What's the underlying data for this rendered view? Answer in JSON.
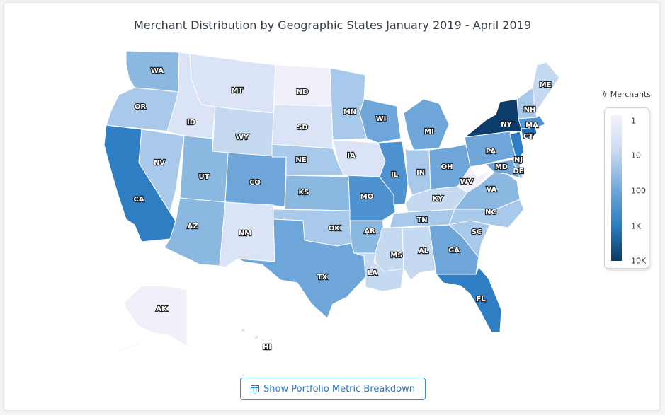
{
  "title": "Merchant Distribution by Geographic States January 2019 - April 2019",
  "legend": {
    "title": "# Merchants",
    "ticks": [
      "1",
      "10",
      "100",
      "1K",
      "10K"
    ]
  },
  "button": {
    "label": "Show Portfolio Metric Breakdown",
    "icon": "table-icon"
  },
  "colors": {
    "c1": "#f0effa",
    "c2": "#dbe4f6",
    "c3": "#c5d9f1",
    "c4": "#a9c9ea",
    "c5": "#8bb8e1",
    "c6": "#6ea6d9",
    "c7": "#4e92cf",
    "c8": "#2f7ec4",
    "c9": "#1c69b3",
    "c10": "#0b3c6c"
  },
  "states": [
    {
      "code": "WA",
      "shade": "c5"
    },
    {
      "code": "OR",
      "shade": "c4"
    },
    {
      "code": "CA",
      "shade": "c8"
    },
    {
      "code": "NV",
      "shade": "c4"
    },
    {
      "code": "ID",
      "shade": "c2"
    },
    {
      "code": "MT",
      "shade": "c2"
    },
    {
      "code": "WY",
      "shade": "c3"
    },
    {
      "code": "UT",
      "shade": "c5"
    },
    {
      "code": "AZ",
      "shade": "c5"
    },
    {
      "code": "CO",
      "shade": "c6"
    },
    {
      "code": "NM",
      "shade": "c2"
    },
    {
      "code": "ND",
      "shade": "c1"
    },
    {
      "code": "SD",
      "shade": "c2"
    },
    {
      "code": "NE",
      "shade": "c4"
    },
    {
      "code": "KS",
      "shade": "c5"
    },
    {
      "code": "OK",
      "shade": "c4"
    },
    {
      "code": "TX",
      "shade": "c6"
    },
    {
      "code": "MN",
      "shade": "c4"
    },
    {
      "code": "IA",
      "shade": "c2"
    },
    {
      "code": "MO",
      "shade": "c7"
    },
    {
      "code": "AR",
      "shade": "c5"
    },
    {
      "code": "LA",
      "shade": "c3"
    },
    {
      "code": "WI",
      "shade": "c6"
    },
    {
      "code": "IL",
      "shade": "c7"
    },
    {
      "code": "MI",
      "shade": "c6"
    },
    {
      "code": "IN",
      "shade": "c4"
    },
    {
      "code": "OH",
      "shade": "c6"
    },
    {
      "code": "KY",
      "shade": "c3"
    },
    {
      "code": "TN",
      "shade": "c4"
    },
    {
      "code": "MS",
      "shade": "c3"
    },
    {
      "code": "AL",
      "shade": "c3"
    },
    {
      "code": "GA",
      "shade": "c6"
    },
    {
      "code": "FL",
      "shade": "c8"
    },
    {
      "code": "SC",
      "shade": "c4"
    },
    {
      "code": "NC",
      "shade": "c4"
    },
    {
      "code": "VA",
      "shade": "c5"
    },
    {
      "code": "WV",
      "shade": "c1"
    },
    {
      "code": "MD",
      "shade": "c6"
    },
    {
      "code": "DE",
      "shade": "c5"
    },
    {
      "code": "PA",
      "shade": "c6"
    },
    {
      "code": "NJ",
      "shade": "c8"
    },
    {
      "code": "NY",
      "shade": "c10"
    },
    {
      "code": "CT",
      "shade": "c9"
    },
    {
      "code": "MA",
      "shade": "c7"
    },
    {
      "code": "NH",
      "shade": "c4"
    },
    {
      "code": "ME",
      "shade": "c3"
    },
    {
      "code": "AK",
      "shade": "c1"
    },
    {
      "code": "HI",
      "shade": "c2"
    }
  ]
}
